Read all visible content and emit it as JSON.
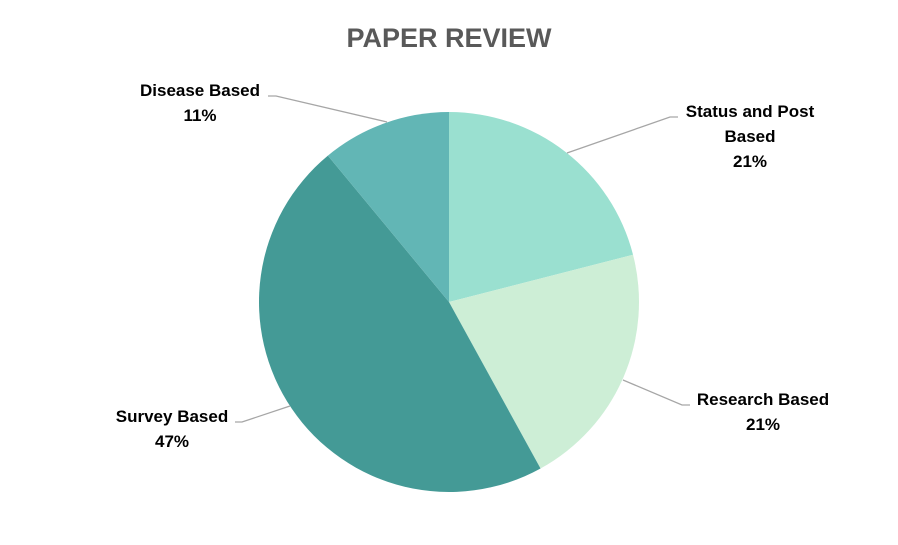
{
  "chart_data": {
    "type": "pie",
    "title": "PAPER REVIEW",
    "start_angle_deg": 0,
    "direction": "clockwise",
    "legend": "none",
    "slices": [
      {
        "label": [
          "Status and Post",
          "Based"
        ],
        "value": 21,
        "percent_label": "21%",
        "color": "#9ae0d0"
      },
      {
        "label": [
          "Research Based"
        ],
        "value": 21,
        "percent_label": "21%",
        "color": "#cdeed6"
      },
      {
        "label": [
          "Survey Based"
        ],
        "value": 47,
        "percent_label": "47%",
        "color": "#449a96"
      },
      {
        "label": [
          "Disease Based"
        ],
        "value": 11,
        "percent_label": "11%",
        "color": "#62b6b5"
      }
    ]
  }
}
